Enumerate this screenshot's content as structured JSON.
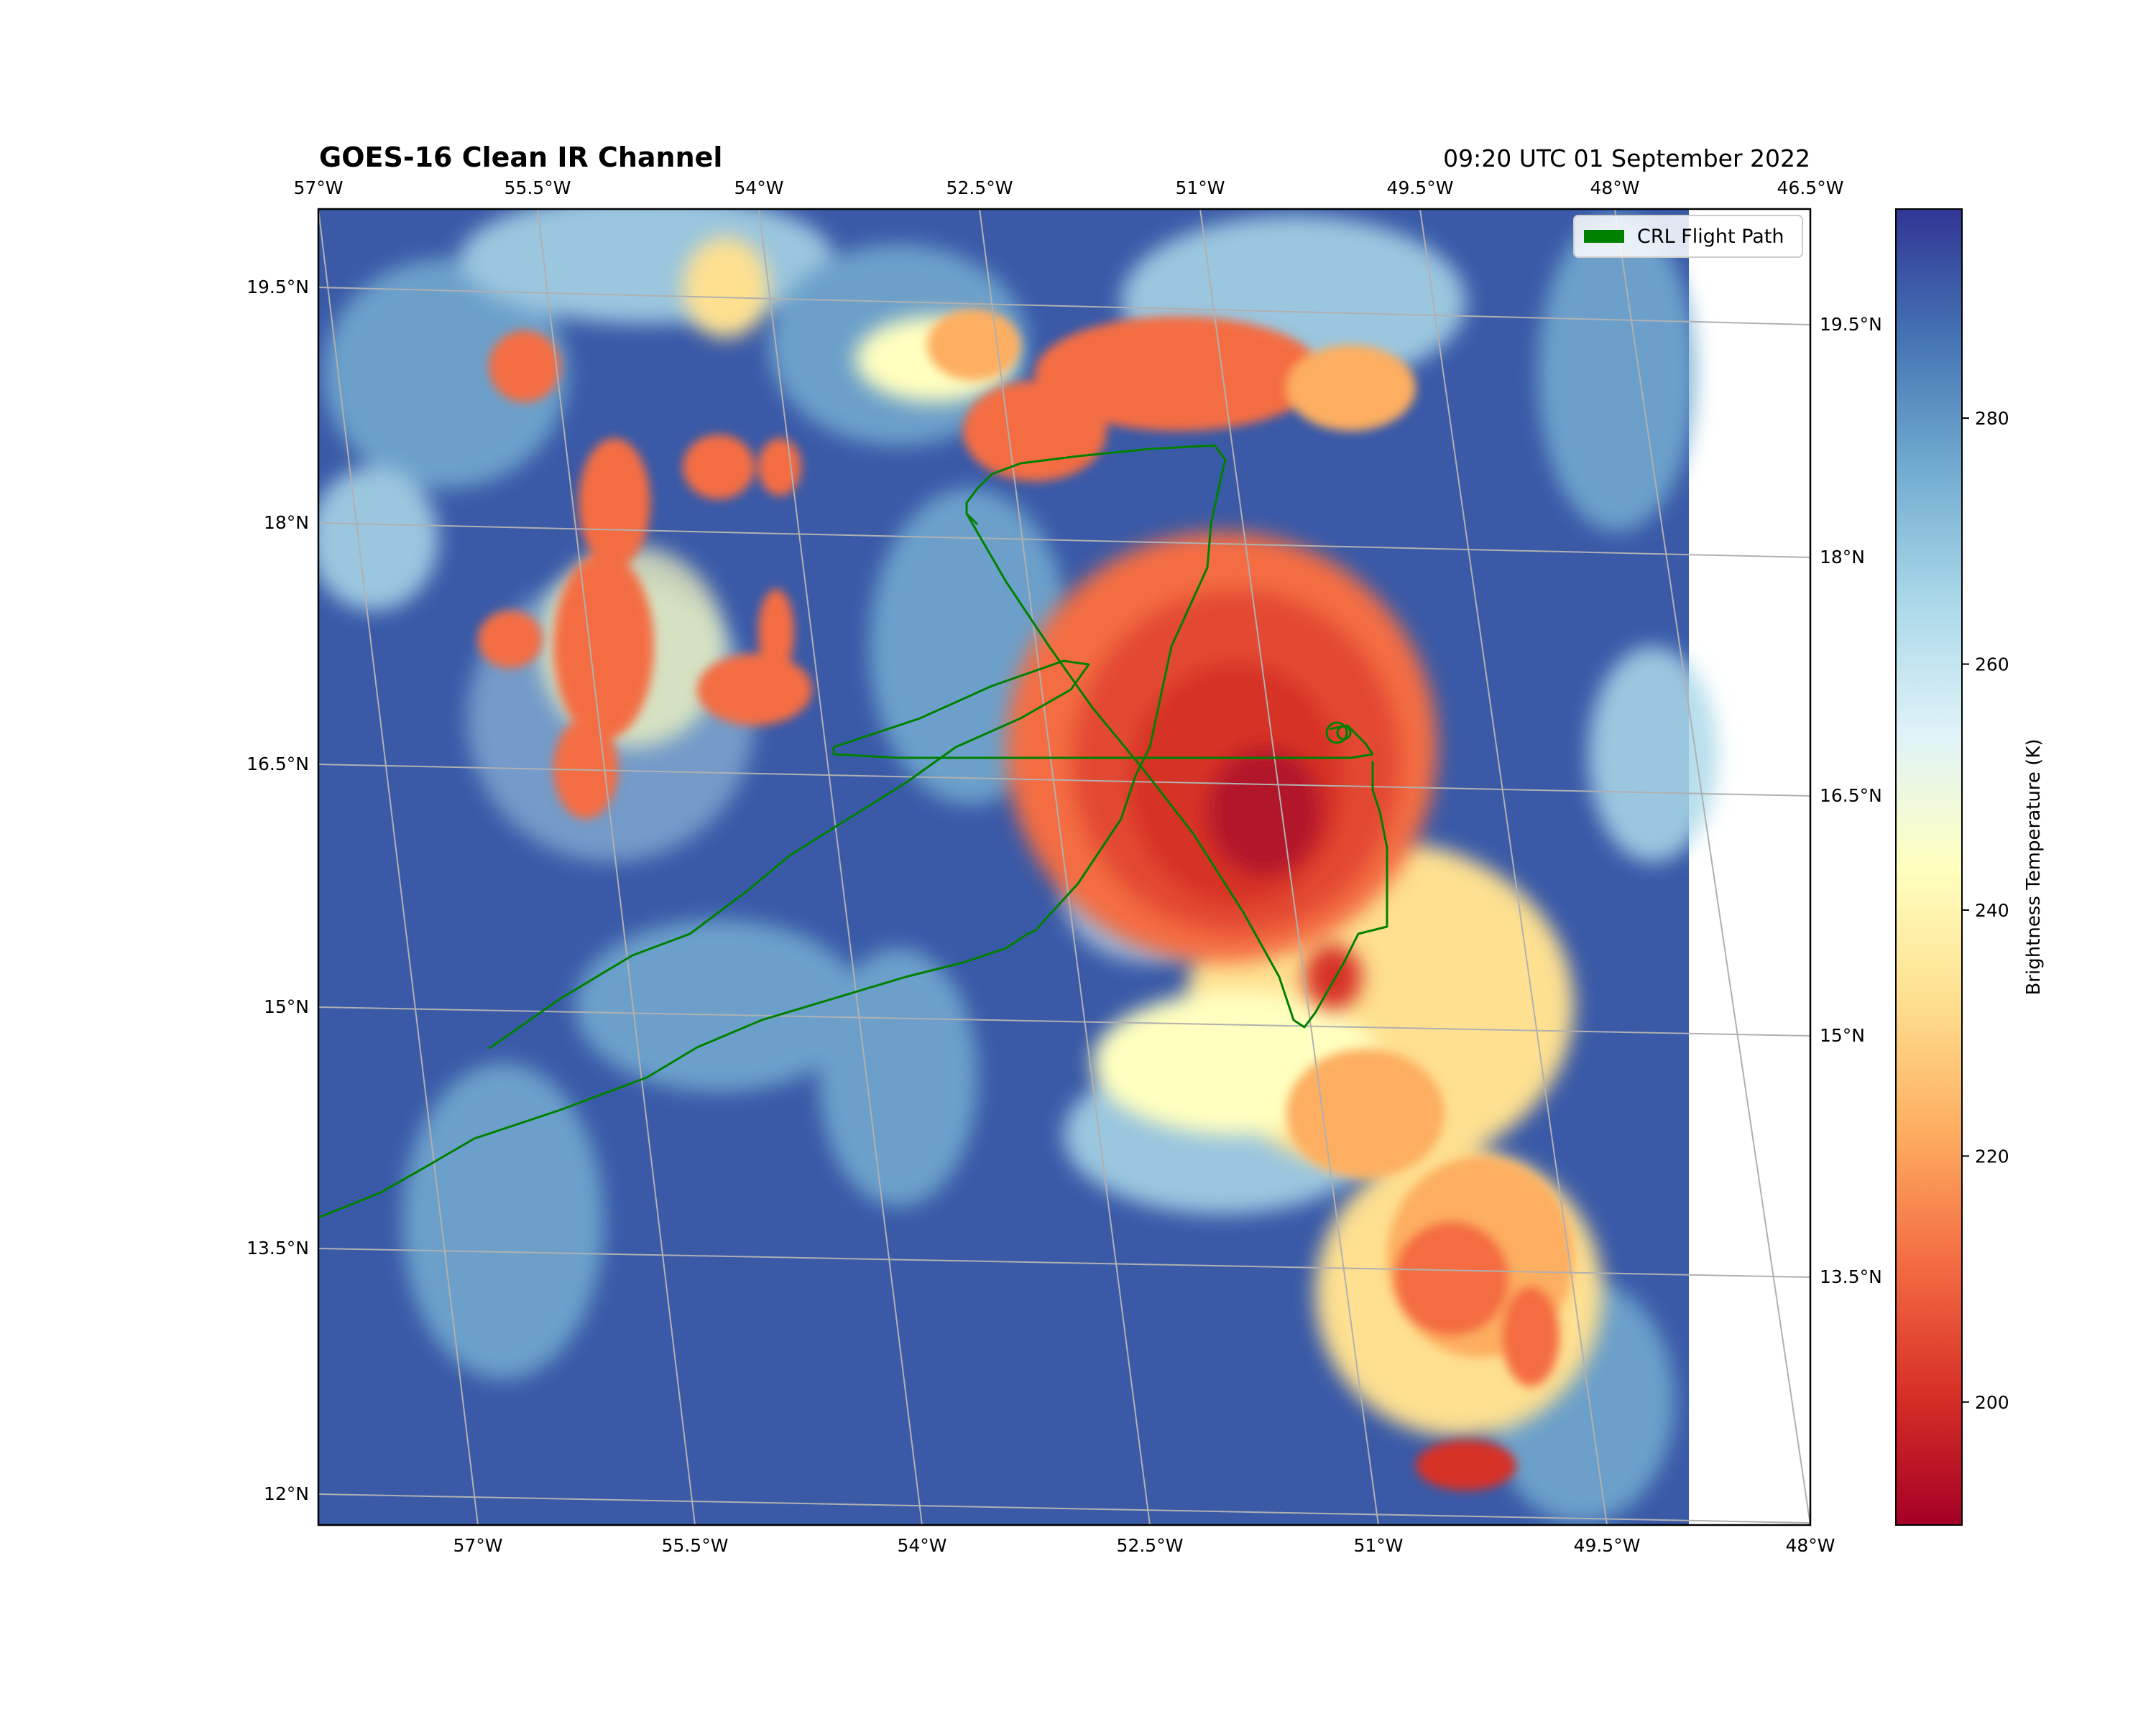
{
  "title": "GOES-16 Clean IR Channel",
  "timestamp": "09:20 UTC 01 September 2022",
  "legend": {
    "label": "CRL Flight Path",
    "color": "#008000"
  },
  "colorbar": {
    "label": "Brightness Temperature (K)",
    "ticks": [
      "200",
      "220",
      "240",
      "260",
      "280"
    ],
    "tick_values": [
      200,
      220,
      240,
      260,
      280
    ],
    "range": [
      190,
      297
    ],
    "colormap": "RdYlBu",
    "stops": [
      "#a50026",
      "#d73027",
      "#f46d43",
      "#fdae61",
      "#fee090",
      "#ffffbf",
      "#e0f3f8",
      "#abd9e9",
      "#74add1",
      "#4575b4",
      "#313695"
    ]
  },
  "axes": {
    "top_lon_labels": [
      "57°W",
      "55.5°W",
      "54°W",
      "52.5°W",
      "51°W",
      "49.5°W",
      "48°W",
      "46.5°W"
    ],
    "bottom_lon_labels": [
      "57°W",
      "55.5°W",
      "54°W",
      "52.5°W",
      "51°W",
      "49.5°W",
      "48°W"
    ],
    "left_lat_labels": [
      "19.5°N",
      "18°N",
      "16.5°N",
      "15°N",
      "13.5°N",
      "12°N"
    ],
    "right_lat_labels": [
      "19.5°N",
      "18°N",
      "16.5°N",
      "15°N",
      "13.5°N"
    ],
    "gridlines": true
  },
  "map_extent": {
    "lon": [
      -57.6,
      -46.8
    ],
    "lat": [
      11.9,
      20.0
    ]
  },
  "colors": {
    "ocean": "#3a5aa8",
    "flight_path": "#008000",
    "grid": "#b0b0b0"
  }
}
